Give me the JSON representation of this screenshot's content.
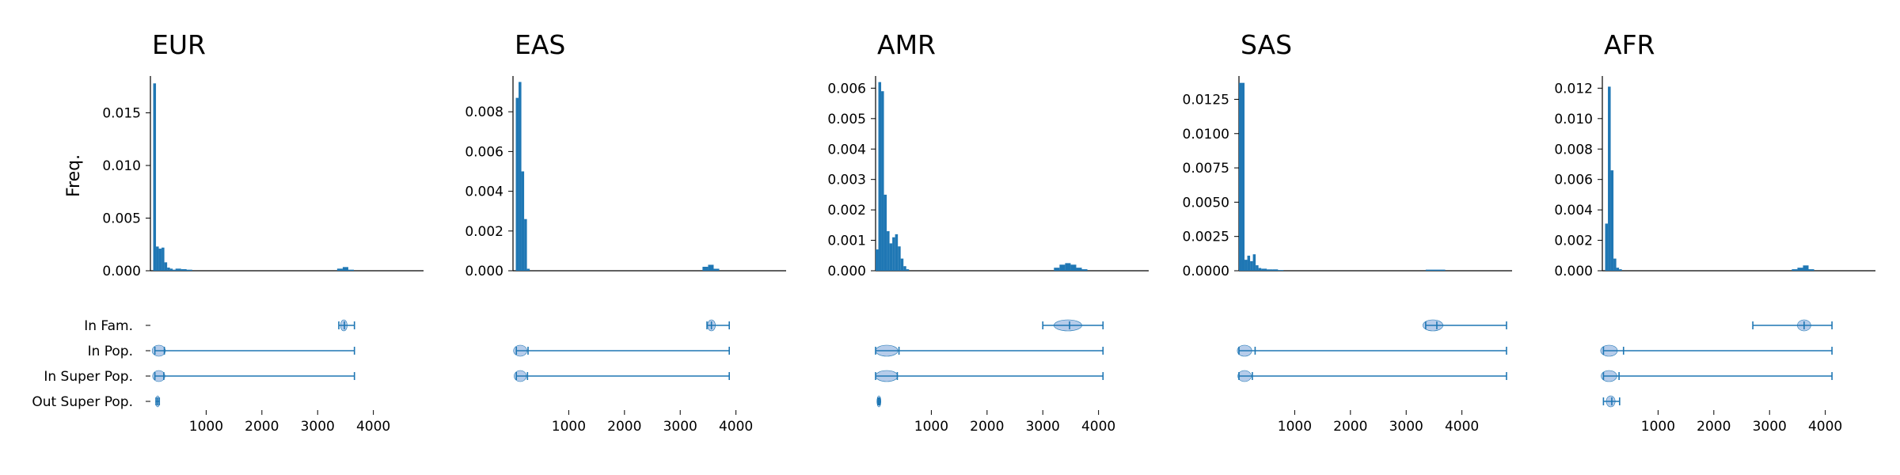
{
  "figure": {
    "y_axis_label": "Freq.",
    "bar_color": "#1f77b4",
    "violin_color": "#aec7e8"
  },
  "chart_data": {
    "type": "histogram",
    "xlim": [
      0,
      4900
    ],
    "x_ticks": [
      1000,
      2000,
      3000,
      4000
    ],
    "violin_categories": [
      "In Fam.",
      "In Pop.",
      "In Super Pop.",
      "Out Super Pop."
    ],
    "panels": [
      {
        "title": "EUR",
        "ylim": [
          0,
          0.0185
        ],
        "y_ticks": [
          0,
          0.005,
          0.01,
          0.015
        ],
        "y_tick_labels": [
          "0.000",
          "0.005",
          "0.010",
          "0.015"
        ],
        "bins": [
          [
            0,
            50,
            0
          ],
          [
            50,
            100,
            0.0178
          ],
          [
            100,
            150,
            0.0023
          ],
          [
            150,
            200,
            0.0021
          ],
          [
            200,
            250,
            0.0022
          ],
          [
            250,
            300,
            0.0008
          ],
          [
            300,
            350,
            0.0003
          ],
          [
            350,
            400,
            0.0002
          ],
          [
            400,
            450,
            0.0001
          ],
          [
            450,
            550,
            0.0002
          ],
          [
            550,
            650,
            0.00015
          ],
          [
            650,
            750,
            0.0001
          ],
          [
            3350,
            3450,
            0.0002
          ],
          [
            3450,
            3550,
            0.00035
          ],
          [
            3550,
            3650,
            0.0001
          ]
        ],
        "violins": [
          {
            "category": "In Fam.",
            "min": 3380,
            "max": 3660,
            "median": 3480,
            "peak": 3470,
            "spread": 60
          },
          {
            "category": "In Pop.",
            "min": 80,
            "max": 3660,
            "median": 250,
            "peak": 150,
            "spread": 120
          },
          {
            "category": "In Super Pop.",
            "min": 80,
            "max": 3660,
            "median": 240,
            "peak": 150,
            "spread": 110
          },
          {
            "category": "Out Super Pop.",
            "min": 100,
            "max": 160,
            "median": 130,
            "peak": 130,
            "spread": 20
          }
        ]
      },
      {
        "title": "EAS",
        "ylim": [
          0,
          0.0098
        ],
        "y_ticks": [
          0,
          0.002,
          0.004,
          0.006,
          0.008
        ],
        "y_tick_labels": [
          "0.000",
          "0.002",
          "0.004",
          "0.006",
          "0.008"
        ],
        "bins": [
          [
            0,
            50,
            0
          ],
          [
            50,
            100,
            0.0087
          ],
          [
            100,
            150,
            0.0095
          ],
          [
            150,
            200,
            0.005
          ],
          [
            200,
            250,
            0.0026
          ],
          [
            250,
            300,
            0.0001
          ],
          [
            3400,
            3500,
            0.0002
          ],
          [
            3500,
            3600,
            0.0003
          ],
          [
            3600,
            3700,
            0.0001
          ]
        ],
        "violins": [
          {
            "category": "In Fam.",
            "min": 3480,
            "max": 3880,
            "median": 3560,
            "peak": 3560,
            "spread": 70
          },
          {
            "category": "In Pop.",
            "min": 60,
            "max": 3880,
            "median": 270,
            "peak": 130,
            "spread": 120
          },
          {
            "category": "In Super Pop.",
            "min": 60,
            "max": 3880,
            "median": 260,
            "peak": 130,
            "spread": 110
          }
        ]
      },
      {
        "title": "AMR",
        "ylim": [
          0,
          0.0064
        ],
        "y_ticks": [
          0,
          0.001,
          0.002,
          0.003,
          0.004,
          0.005,
          0.006
        ],
        "y_tick_labels": [
          "0.000",
          "0.001",
          "0.002",
          "0.003",
          "0.004",
          "0.005",
          "0.006"
        ],
        "bins": [
          [
            0,
            50,
            0.0007
          ],
          [
            50,
            100,
            0.0062
          ],
          [
            100,
            150,
            0.0059
          ],
          [
            150,
            200,
            0.0025
          ],
          [
            200,
            250,
            0.0013
          ],
          [
            250,
            300,
            0.0009
          ],
          [
            300,
            350,
            0.0011
          ],
          [
            350,
            400,
            0.0012
          ],
          [
            400,
            450,
            0.0008
          ],
          [
            450,
            500,
            0.0004
          ],
          [
            500,
            550,
            0.00015
          ],
          [
            550,
            600,
            5e-05
          ],
          [
            3200,
            3300,
            0.0001
          ],
          [
            3300,
            3400,
            0.0002
          ],
          [
            3400,
            3500,
            0.00025
          ],
          [
            3500,
            3600,
            0.0002
          ],
          [
            3600,
            3700,
            0.0001
          ],
          [
            3700,
            3800,
            5e-05
          ]
        ],
        "violins": [
          {
            "category": "In Fam.",
            "min": 3000,
            "max": 4080,
            "median": 3480,
            "peak": 3450,
            "spread": 250
          },
          {
            "category": "In Pop.",
            "min": 0,
            "max": 4080,
            "median": 420,
            "peak": 200,
            "spread": 200
          },
          {
            "category": "In Super Pop.",
            "min": 0,
            "max": 4080,
            "median": 390,
            "peak": 200,
            "spread": 200
          },
          {
            "category": "Out Super Pop.",
            "min": 40,
            "max": 80,
            "median": 60,
            "peak": 60,
            "spread": 15
          }
        ]
      },
      {
        "title": "SAS",
        "ylim": [
          0,
          0.0142
        ],
        "y_ticks": [
          0,
          0.0025,
          0.005,
          0.0075,
          0.01,
          0.0125
        ],
        "y_tick_labels": [
          "0.0000",
          "0.0025",
          "0.0050",
          "0.0075",
          "0.0100",
          "0.0125"
        ],
        "bins": [
          [
            0,
            50,
            0.0137
          ],
          [
            50,
            100,
            0.0137
          ],
          [
            100,
            150,
            0.0008
          ],
          [
            150,
            200,
            0.0011
          ],
          [
            200,
            250,
            0.0007
          ],
          [
            250,
            300,
            0.0012
          ],
          [
            300,
            350,
            0.0004
          ],
          [
            350,
            400,
            0.0002
          ],
          [
            400,
            500,
            0.00015
          ],
          [
            500,
            600,
            0.0001
          ],
          [
            600,
            700,
            0.0001
          ],
          [
            700,
            800,
            5e-05
          ],
          [
            3350,
            3700,
            8e-05
          ]
        ],
        "violins": [
          {
            "category": "In Fam.",
            "min": 3350,
            "max": 4800,
            "median": 3550,
            "peak": 3480,
            "spread": 180
          },
          {
            "category": "In Pop.",
            "min": 0,
            "max": 4800,
            "median": 290,
            "peak": 100,
            "spread": 130
          },
          {
            "category": "In Super Pop.",
            "min": 0,
            "max": 4800,
            "median": 240,
            "peak": 100,
            "spread": 120
          }
        ]
      },
      {
        "title": "AFR",
        "ylim": [
          0,
          0.0128
        ],
        "y_ticks": [
          0,
          0.002,
          0.004,
          0.006,
          0.008,
          0.01,
          0.012
        ],
        "y_tick_labels": [
          "0.000",
          "0.002",
          "0.004",
          "0.006",
          "0.008",
          "0.010",
          "0.012"
        ],
        "bins": [
          [
            0,
            50,
            0
          ],
          [
            50,
            100,
            0.0031
          ],
          [
            100,
            150,
            0.0121
          ],
          [
            150,
            200,
            0.0066
          ],
          [
            200,
            250,
            0.0008
          ],
          [
            250,
            300,
            0.0002
          ],
          [
            300,
            350,
            0.0001
          ],
          [
            3400,
            3500,
            0.0001
          ],
          [
            3500,
            3600,
            0.0002
          ],
          [
            3600,
            3700,
            0.00035
          ],
          [
            3700,
            3800,
            0.0001
          ]
        ],
        "violins": [
          {
            "category": "In Fam.",
            "min": 2700,
            "max": 4120,
            "median": 3620,
            "peak": 3620,
            "spread": 120
          },
          {
            "category": "In Pop.",
            "min": 20,
            "max": 4120,
            "median": 380,
            "peak": 120,
            "spread": 150
          },
          {
            "category": "In Super Pop.",
            "min": 20,
            "max": 4120,
            "median": 300,
            "peak": 120,
            "spread": 140
          },
          {
            "category": "Out Super Pop.",
            "min": 20,
            "max": 310,
            "median": 170,
            "peak": 150,
            "spread": 80
          }
        ]
      }
    ]
  }
}
